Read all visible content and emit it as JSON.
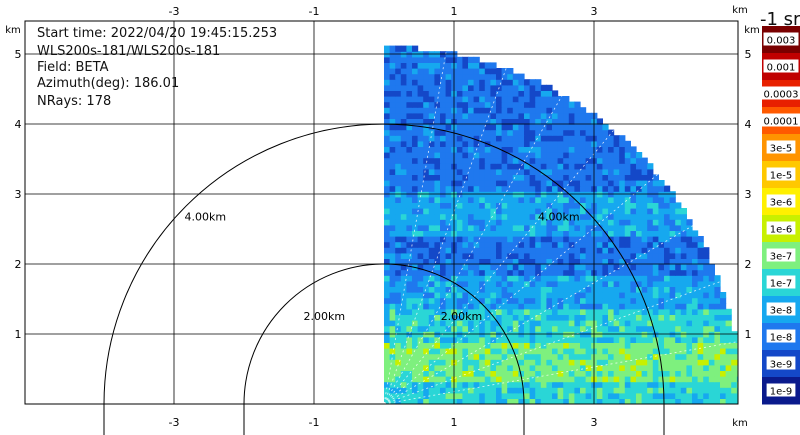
{
  "info": {
    "start_time": "Start time: 2022/04/20 19:45:15.253",
    "instrument": "WLS200s-181/WLS200s-181",
    "field": "Field: BETA",
    "azimuth": "Azimuth(deg): 186.01",
    "nrays": "NRays: 178"
  },
  "colorbar": {
    "title": "-1 sr",
    "labels": [
      "0.003",
      "0.001",
      "0.0003",
      "0.0001",
      "3e-5",
      "1e-5",
      "3e-6",
      "1e-6",
      "3e-7",
      "1e-7",
      "3e-8",
      "1e-8",
      "3e-9",
      "1e-9"
    ],
    "colors": [
      "#7a0000",
      "#c00000",
      "#e82000",
      "#ff5a00",
      "#ff9400",
      "#ffc800",
      "#fff000",
      "#c8f000",
      "#7ef07e",
      "#2ad6d6",
      "#16a8ef",
      "#1f78ee",
      "#1448c8",
      "#0a1a8c"
    ]
  },
  "chart_data": {
    "type": "heatmap",
    "description_units": "km",
    "x_ticks": [
      "-3",
      "-1",
      "1",
      "3"
    ],
    "y_ticks": [
      "1",
      "2",
      "3",
      "4",
      "5"
    ],
    "axis_unit_label": "km",
    "xlim": [
      -4.0,
      5.0
    ],
    "ylim": [
      0.0,
      5.4
    ],
    "grid": true,
    "range_rings": [
      {
        "radius_km": 2.0,
        "label": "2.00km"
      },
      {
        "radius_km": 4.0,
        "label": "4.00km"
      }
    ],
    "sector": {
      "azimuth_start_deg": 0,
      "azimuth_end_deg": 90,
      "max_range_km": 5.1
    },
    "bands": [
      {
        "height_km": [
          0.0,
          0.3
        ],
        "color_index": 9
      },
      {
        "height_km": [
          0.3,
          0.8
        ],
        "color_index": 8
      },
      {
        "height_km": [
          0.8,
          1.3
        ],
        "color_index": 9
      },
      {
        "height_km": [
          1.3,
          1.8
        ],
        "color_index": 10
      },
      {
        "height_km": [
          1.8,
          2.4
        ],
        "color_index": 11
      },
      {
        "height_km": [
          2.4,
          3.0
        ],
        "color_index": 10
      },
      {
        "height_km": [
          3.0,
          3.8
        ],
        "color_index": 11
      },
      {
        "height_km": [
          3.8,
          5.1
        ],
        "color_index": 11
      }
    ]
  }
}
